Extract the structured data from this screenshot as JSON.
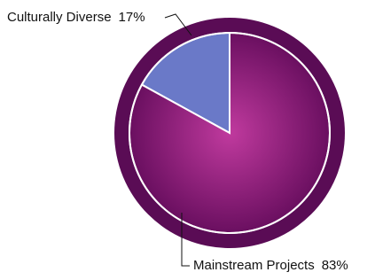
{
  "chart_data": {
    "type": "pie",
    "categories": [
      "Culturally Diverse",
      "Mainstream Projects"
    ],
    "values": [
      17,
      83
    ],
    "value_labels": [
      "17%",
      "83%"
    ],
    "colors": [
      "#6a79c8",
      "#9a2a86"
    ]
  }
}
